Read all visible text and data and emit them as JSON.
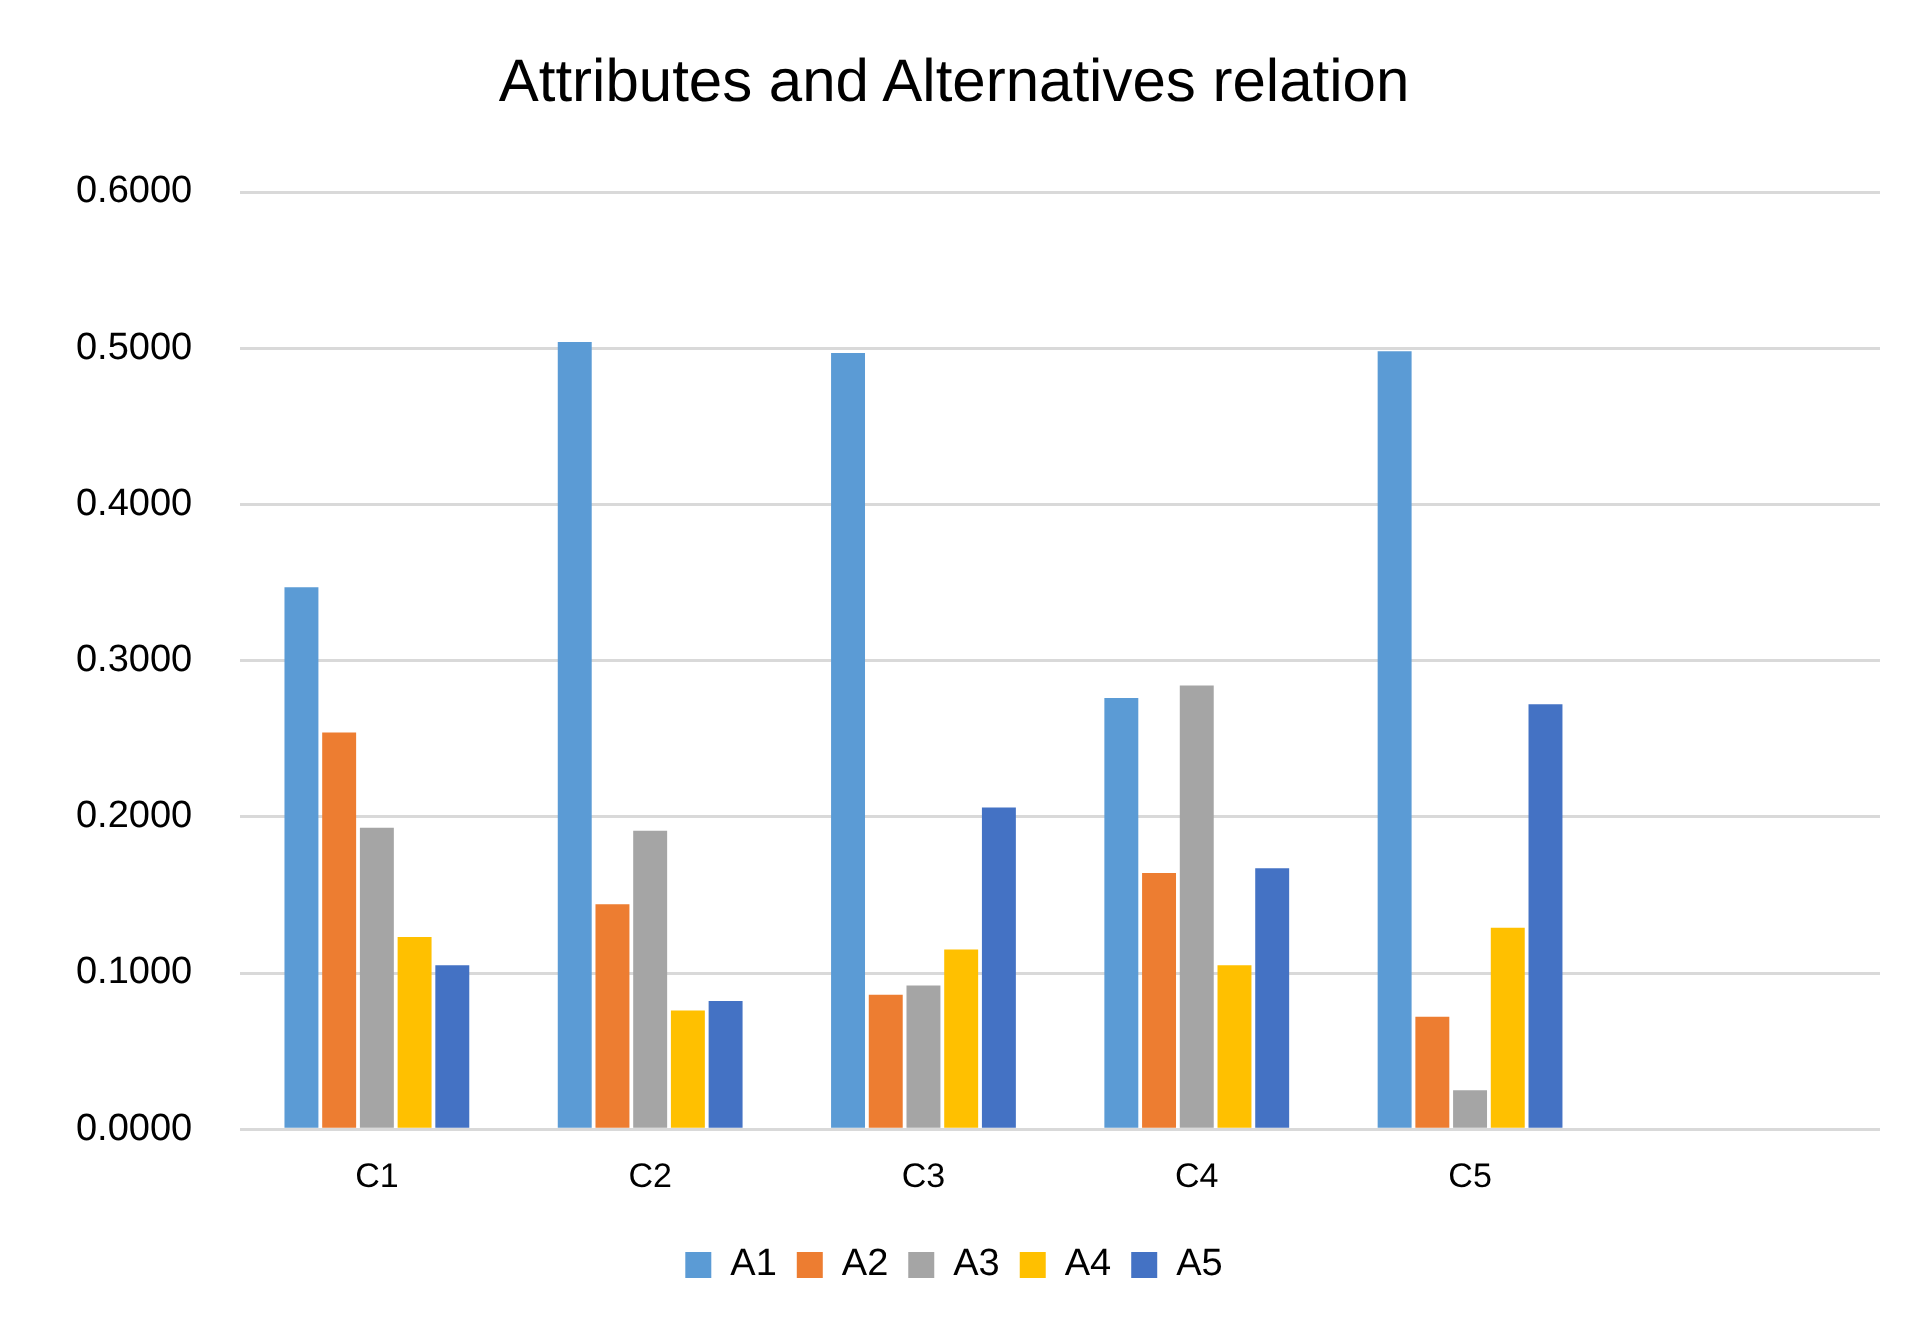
{
  "chart_data": {
    "type": "bar",
    "title": "Attributes and Alternatives relation",
    "categories": [
      "C1",
      "C2",
      "C3",
      "C4",
      "C5",
      null
    ],
    "series": [
      {
        "name": "A1",
        "color": "#5b9bd5",
        "values": [
          0.347,
          0.504,
          0.497,
          0.276,
          0.498,
          null
        ]
      },
      {
        "name": "A2",
        "color": "#ed7d31",
        "values": [
          0.254,
          0.144,
          0.086,
          0.164,
          0.072,
          null
        ]
      },
      {
        "name": "A3",
        "color": "#a5a5a5",
        "values": [
          0.193,
          0.191,
          0.092,
          0.284,
          0.025,
          null
        ]
      },
      {
        "name": "A4",
        "color": "#ffc000",
        "values": [
          0.123,
          0.076,
          0.115,
          0.105,
          0.129,
          null
        ]
      },
      {
        "name": "A5",
        "color": "#4472c4",
        "values": [
          0.105,
          0.082,
          0.206,
          0.167,
          0.272,
          null
        ]
      }
    ],
    "ylim": [
      0,
      0.6
    ],
    "yticks": [
      {
        "value": 0,
        "label": "0.0000"
      },
      {
        "value": 0.1,
        "label": "0.1000"
      },
      {
        "value": 0.2,
        "label": "0.2000"
      },
      {
        "value": 0.3,
        "label": "0.3000"
      },
      {
        "value": 0.4,
        "label": "0.4000"
      },
      {
        "value": 0.5,
        "label": "0.5000"
      },
      {
        "value": 0.6,
        "label": "0.6000"
      }
    ],
    "grid": "y",
    "legend": "bottom"
  }
}
